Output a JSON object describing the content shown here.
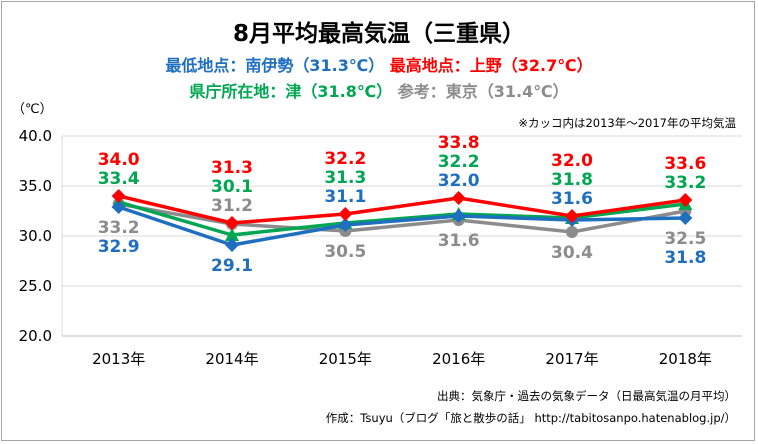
{
  "title": "8月平均最高気温（三重県）",
  "subtitle1": {
    "low_label": "最低地点：南伊勢（31.3℃）",
    "high_label": "最高地点：上野（32.7℃）"
  },
  "subtitle2": {
    "pref_label": "県庁所在地：津（31.8℃）",
    "ref_label": "参考：東京（31.4℃）"
  },
  "unit_label": "（℃）",
  "period_note": "※カッコ内は2013年～2017年の平均気温",
  "source_line": "出典：気象庁・過去の気象データ（日最高気温の月平均）",
  "author_line": "作成：Tsuyu（ブログ「旅と散歩の話」 http://tabitosanpo.hatenablog.jp/）",
  "colors": {
    "blue": "#1f6fc1",
    "red": "#ff0000",
    "green": "#00a651",
    "gray": "#8c8c8c",
    "grid": "#d9d9d9"
  },
  "chart_data": {
    "type": "line",
    "categories": [
      "2013年",
      "2014年",
      "2015年",
      "2016年",
      "2017年",
      "2018年"
    ],
    "ylim": [
      20.0,
      40.0
    ],
    "yticks": [
      "20.0",
      "25.0",
      "30.0",
      "35.0",
      "40.0"
    ],
    "grid": true,
    "series": [
      {
        "key": "tokyo",
        "color": "#8c8c8c",
        "marker": "circle",
        "values": [
          33.2,
          31.2,
          30.5,
          31.6,
          30.4,
          32.5
        ],
        "labels": [
          "33.2",
          "31.2",
          "30.5",
          "31.6",
          "30.4",
          "32.5"
        ]
      },
      {
        "key": "tsu",
        "color": "#00a651",
        "marker": "triangle",
        "values": [
          33.4,
          30.1,
          31.3,
          32.2,
          31.8,
          33.2
        ],
        "labels": [
          "33.4",
          "30.1",
          "31.3",
          "32.2",
          "31.8",
          "33.2"
        ]
      },
      {
        "key": "minamiise",
        "color": "#1f6fc1",
        "marker": "diamond",
        "values": [
          32.9,
          29.1,
          31.1,
          32.0,
          31.6,
          31.8
        ],
        "labels": [
          "32.9",
          "29.1",
          "31.1",
          "32.0",
          "31.6",
          "31.8"
        ]
      },
      {
        "key": "ueno",
        "color": "#ff0000",
        "marker": "diamond",
        "values": [
          34.0,
          31.3,
          32.2,
          33.8,
          32.0,
          33.6
        ],
        "labels": [
          "34.0",
          "31.3",
          "32.2",
          "33.8",
          "32.0",
          "33.6"
        ]
      }
    ]
  }
}
